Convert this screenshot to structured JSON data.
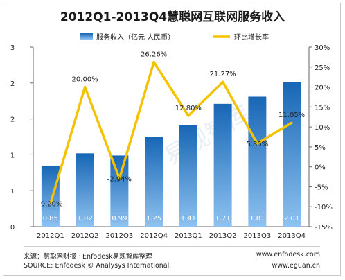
{
  "chart_data": {
    "type": "bar+line",
    "title": "2012Q1-2013Q4慧聪网互联网服务收入",
    "categories": [
      "2012Q1",
      "2012Q2",
      "2012Q3",
      "2012Q4",
      "2013Q1",
      "2013Q2",
      "2013Q3",
      "2013Q4"
    ],
    "series": [
      {
        "name": "服务收入（亿元 人民币）",
        "type": "bar",
        "axis": "left",
        "color": "#1f73c2",
        "values": [
          0.85,
          1.02,
          0.99,
          1.25,
          1.41,
          1.71,
          1.81,
          2.01
        ],
        "labels": [
          "0.85",
          "1.02",
          "0.99",
          "1.25",
          "1.41",
          "1.71",
          "1.81",
          "2.01"
        ]
      },
      {
        "name": "环比增长率",
        "type": "line",
        "axis": "right",
        "color": "#f5c200",
        "values": [
          -9.2,
          20.0,
          -2.94,
          26.26,
          12.8,
          21.27,
          5.85,
          11.05
        ],
        "labels": [
          "-9.20%",
          "20.00%",
          "-2.94%",
          "26.26%",
          "12.80%",
          "21.27%",
          "5.85%",
          "11.05%"
        ]
      }
    ],
    "left_axis": {
      "ylim": [
        0,
        2.5
      ],
      "tick_labels": [
        "0",
        "1",
        "1",
        "2",
        "2",
        "3"
      ]
    },
    "right_axis": {
      "ylim": [
        -15,
        30
      ],
      "tick_labels": [
        "-15%",
        "-10%",
        "-5%",
        "0%",
        "5%",
        "10%",
        "15%",
        "20%",
        "25%",
        "30%"
      ]
    },
    "legend": "top-center",
    "grid": false
  },
  "footer": {
    "source_cn": "来源：慧聪网财报 · Enfodesk易观智库整理",
    "source_en": "SOURCE: Enfodesk © Analysys International",
    "site1": "www.enfodesk.com",
    "site2": "www.eguan.cn"
  }
}
